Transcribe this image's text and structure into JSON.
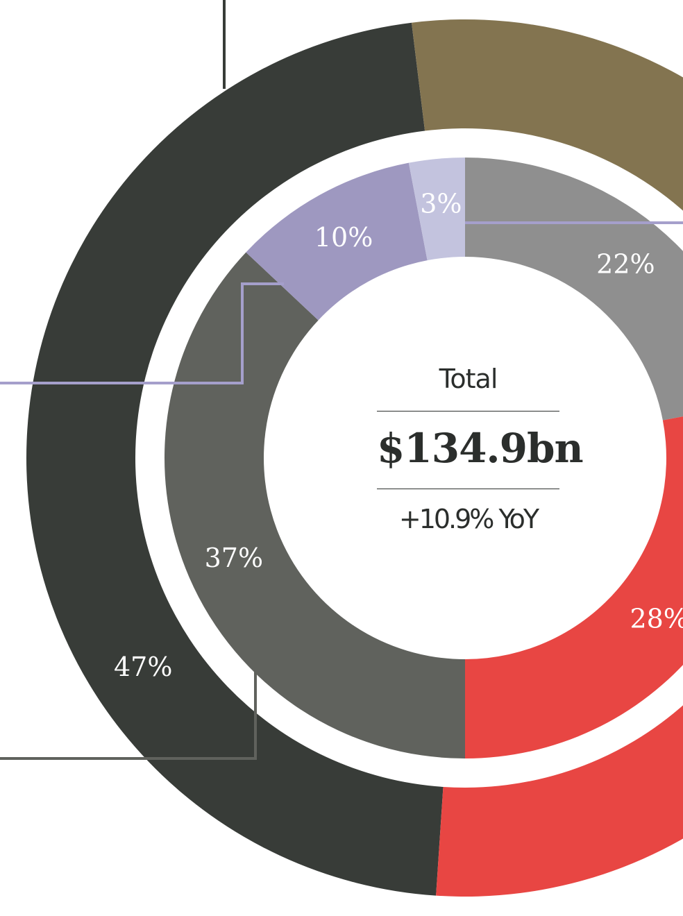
{
  "chart_data": {
    "type": "pie",
    "total_label": "Total",
    "total_value": "$134.9bn",
    "total_change": "+10.9% YoY",
    "rings": [
      {
        "ring": "outer",
        "slices": [
          {
            "value": 47,
            "label": "47%",
            "color": "#383c38"
          },
          {
            "value": null,
            "label": "",
            "color": "#837450"
          },
          {
            "value": null,
            "label": "",
            "color": "#e84643"
          }
        ]
      },
      {
        "ring": "inner",
        "slices": [
          {
            "value": 22,
            "label": "22%",
            "color": "#8f8f8f"
          },
          {
            "value": 28,
            "label": "28%",
            "color": "#e84643"
          },
          {
            "value": 37,
            "label": "37%",
            "color": "#60625d"
          },
          {
            "value": 10,
            "label": "10%",
            "color": "#9e98c0"
          },
          {
            "value": 3,
            "label": "3%",
            "color": "#c3c3de"
          }
        ]
      }
    ]
  }
}
